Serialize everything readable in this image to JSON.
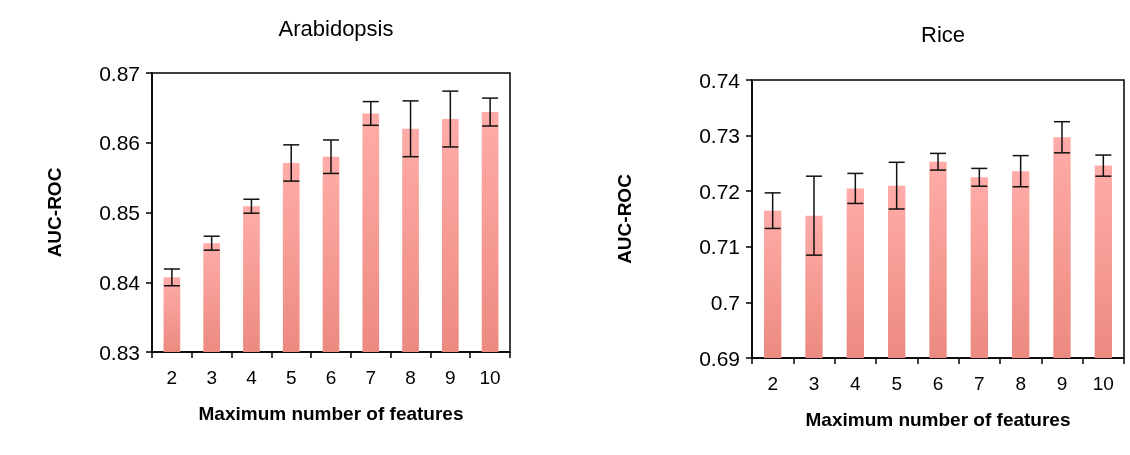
{
  "chart_data": [
    {
      "type": "bar",
      "title": "Arabidopsis",
      "xlabel": "Maximum number of features",
      "ylabel": "AUC-ROC",
      "categories": [
        "2",
        "3",
        "4",
        "5",
        "6",
        "7",
        "8",
        "9",
        "10"
      ],
      "series": [
        {
          "color": "#ec8a80",
          "values": [
            0.8407,
            0.8456,
            0.8509,
            0.8571,
            0.858,
            0.8642,
            0.862,
            0.8634,
            0.8644
          ],
          "errors": [
            0.0012,
            0.001,
            0.001,
            0.0026,
            0.0024,
            0.0017,
            0.004,
            0.004,
            0.002
          ]
        }
      ],
      "ylim": [
        0.83,
        0.87
      ],
      "yticks": [
        0.83,
        0.84,
        0.85,
        0.86,
        0.87
      ],
      "grid": false
    },
    {
      "type": "bar",
      "title": "Rice",
      "xlabel": "Maximum number of features",
      "ylabel": "AUC-ROC",
      "categories": [
        "2",
        "3",
        "4",
        "5",
        "6",
        "7",
        "8",
        "9",
        "10"
      ],
      "series": [
        {
          "color": "#ec8a80",
          "values": [
            0.7165,
            0.7156,
            0.7205,
            0.721,
            0.7253,
            0.7225,
            0.7236,
            0.7297,
            0.7246
          ],
          "errors": [
            0.0032,
            0.0071,
            0.0027,
            0.0042,
            0.0015,
            0.0016,
            0.0028,
            0.0028,
            0.0019
          ]
        }
      ],
      "ylim": [
        0.69,
        0.74
      ],
      "yticks": [
        0.69,
        0.7,
        0.71,
        0.72,
        0.73,
        0.74
      ],
      "grid": false
    }
  ]
}
